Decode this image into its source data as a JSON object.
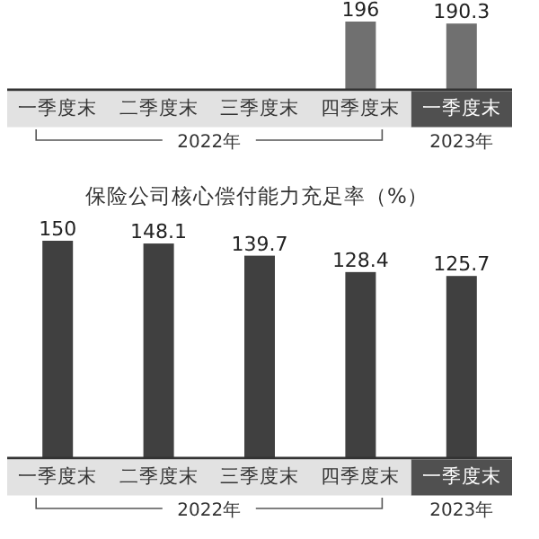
{
  "chart_data": [
    {
      "type": "bar",
      "categories": [
        "一季度末",
        "二季度末",
        "三季度末",
        "四季度末",
        "一季度末"
      ],
      "values": [
        null,
        null,
        null,
        196,
        190.3
      ],
      "color": "#707070",
      "data_labels": true,
      "annotations": [
        "2022年",
        "2023年"
      ]
    },
    {
      "type": "bar",
      "title": "保险公司核心偿付能力充足率（%）",
      "categories": [
        "一季度末",
        "二季度末",
        "三季度末",
        "四季度末",
        "一季度末"
      ],
      "values": [
        150,
        148.1,
        139.7,
        128.4,
        125.7
      ],
      "color": "#404040",
      "data_labels": true,
      "annotations": [
        "2022年",
        "2023年"
      ]
    }
  ]
}
